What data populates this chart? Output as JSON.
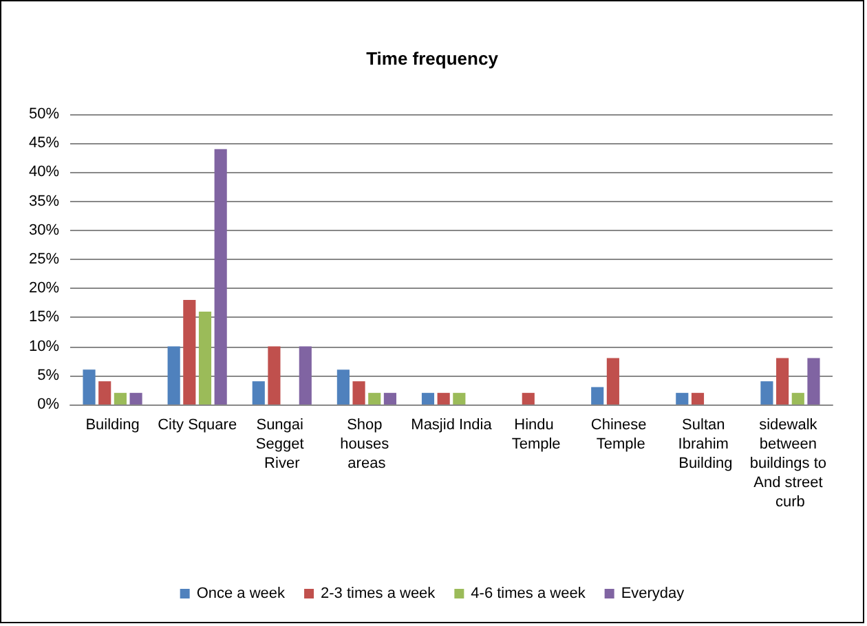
{
  "chart_data": {
    "type": "bar",
    "title": "Time frequency",
    "categories": [
      "Building",
      "City Square",
      "Sungai Segget River",
      "Shop houses areas",
      "Masjid India",
      "Hindu Temple",
      "Chinese Temple",
      "Sultan Ibrahim Building",
      "sidewalk between buildings to And street curb"
    ],
    "series": [
      {
        "name": "Once a week",
        "color": "#4f81bd",
        "values": [
          6,
          10,
          4,
          6,
          2,
          0,
          3,
          2,
          4
        ]
      },
      {
        "name": "2-3 times a week",
        "color": "#c0504d",
        "values": [
          4,
          18,
          10,
          4,
          2,
          2,
          8,
          2,
          8
        ]
      },
      {
        "name": "4-6 times a week",
        "color": "#9bbb59",
        "values": [
          2,
          16,
          0,
          2,
          2,
          0,
          0,
          0,
          2
        ]
      },
      {
        "name": "Everyday",
        "color": "#8064a2",
        "values": [
          2,
          44,
          10,
          2,
          0,
          0,
          0,
          0,
          8
        ]
      }
    ],
    "ylim": [
      0,
      50
    ],
    "yticks": [
      {
        "value": 0,
        "label": "0%"
      },
      {
        "value": 5,
        "label": "5%"
      },
      {
        "value": 10,
        "label": "10%"
      },
      {
        "value": 15,
        "label": "15%"
      },
      {
        "value": 20,
        "label": "20%"
      },
      {
        "value": 25,
        "label": "25%"
      },
      {
        "value": 30,
        "label": "30%"
      },
      {
        "value": 35,
        "label": "35%"
      },
      {
        "value": 40,
        "label": "40%"
      },
      {
        "value": 45,
        "label": "45%"
      },
      {
        "value": 50,
        "label": "50%"
      }
    ],
    "grid": "y",
    "legend": "bottom"
  }
}
